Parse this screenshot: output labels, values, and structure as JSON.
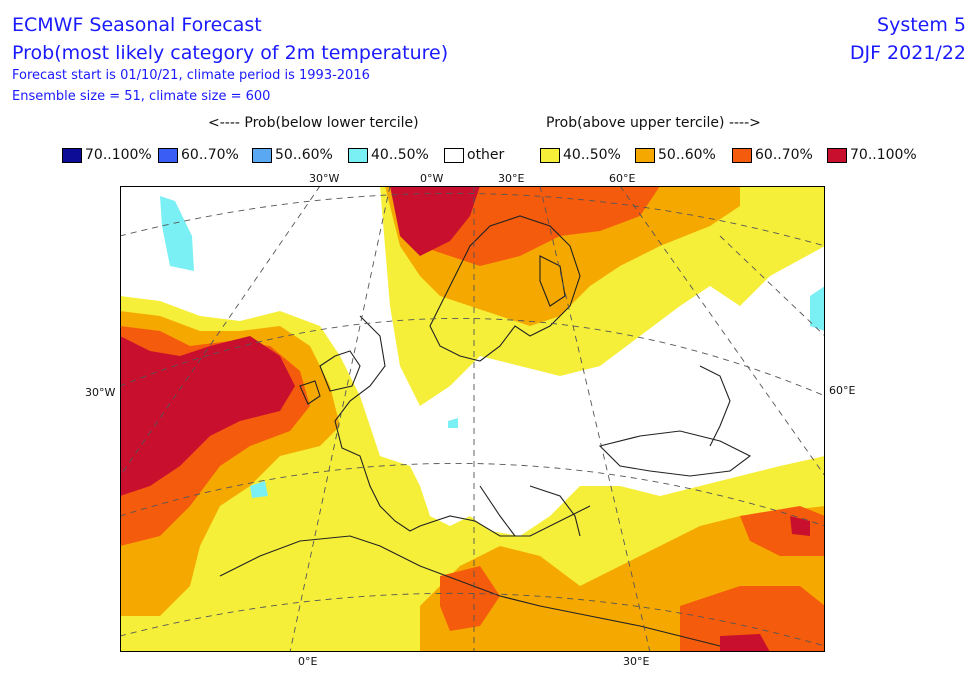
{
  "header": {
    "title": "ECMWF Seasonal Forecast",
    "subtitle": "Prob(most likely category of 2m temperature)",
    "forecast_line": "Forecast start is 01/10/21, climate period is 1993-2016",
    "ensemble_line": "Ensemble size = 51, climate size = 600",
    "system": "System 5",
    "season": "DJF 2021/22"
  },
  "legend": {
    "below_heading": "<---- Prob(below lower tercile)",
    "above_heading": "Prob(above upper tercile) ---->",
    "items": [
      {
        "label": "70..100%",
        "color": "#0c0c96"
      },
      {
        "label": "60..70%",
        "color": "#3a5ef5"
      },
      {
        "label": "50..60%",
        "color": "#5aa8f2"
      },
      {
        "label": "40..50%",
        "color": "#7af0f5"
      },
      {
        "label": "other",
        "color": "#ffffff"
      },
      {
        "label": "40..50%",
        "color": "#f5ef3a"
      },
      {
        "label": "50..60%",
        "color": "#f5a800"
      },
      {
        "label": "60..70%",
        "color": "#f55b0c"
      },
      {
        "label": "70..100%",
        "color": "#c8102e"
      }
    ]
  },
  "axis_labels": {
    "top": [
      "30°W",
      "0°W",
      "30°E",
      "60°E"
    ],
    "left": "30°W",
    "right": "60°E",
    "bottom": [
      "0°E",
      "30°E"
    ]
  }
}
